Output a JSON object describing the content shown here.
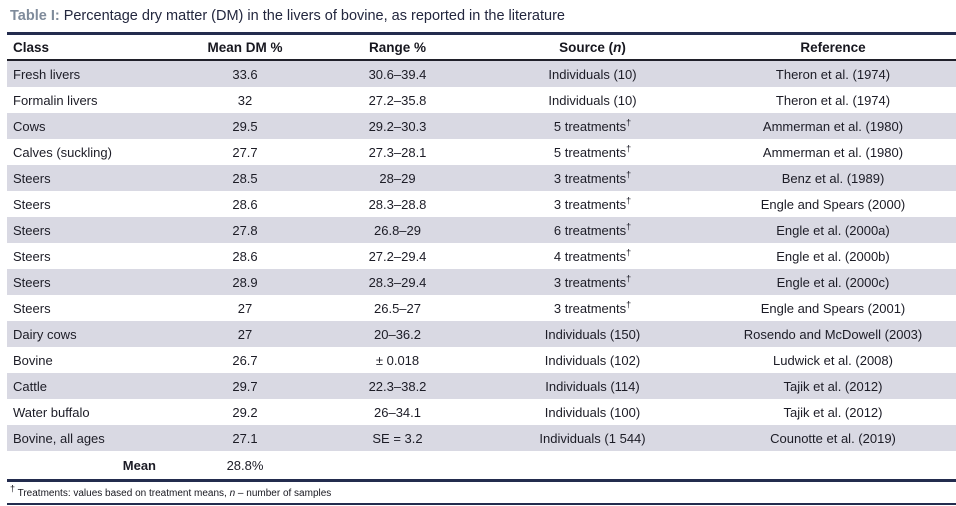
{
  "caption": {
    "label": "Table I:",
    "text": "Percentage dry matter (DM) in the livers of bovine, as reported in the literature"
  },
  "header": {
    "class": "Class",
    "mean": "Mean DM %",
    "range": "Range %",
    "source_pre": "Source (",
    "source_n": "n",
    "source_post": ")",
    "reference": "Reference"
  },
  "rows": [
    {
      "class": "Fresh livers",
      "mean": "33.6",
      "range": "30.6–39.4",
      "source": "Individuals (10)",
      "source_sup": "",
      "reference": "Theron et al. (1974)"
    },
    {
      "class": "Formalin livers",
      "mean": "32",
      "range": "27.2–35.8",
      "source": "Individuals (10)",
      "source_sup": "",
      "reference": "Theron et al. (1974)"
    },
    {
      "class": "Cows",
      "mean": "29.5",
      "range": "29.2–30.3",
      "source": "5 treatments",
      "source_sup": "†",
      "reference": "Ammerman et al. (1980)"
    },
    {
      "class": "Calves (suckling)",
      "mean": "27.7",
      "range": "27.3–28.1",
      "source": "5 treatments",
      "source_sup": "†",
      "reference": "Ammerman et al. (1980)"
    },
    {
      "class": "Steers",
      "mean": "28.5",
      "range": "28–29",
      "source": "3 treatments",
      "source_sup": "†",
      "reference": "Benz et al. (1989)"
    },
    {
      "class": "Steers",
      "mean": "28.6",
      "range": "28.3–28.8",
      "source": "3 treatments",
      "source_sup": "†",
      "reference": "Engle and Spears (2000)"
    },
    {
      "class": "Steers",
      "mean": "27.8",
      "range": "26.8–29",
      "source": "6 treatments",
      "source_sup": "†",
      "reference": "Engle et al. (2000a)"
    },
    {
      "class": "Steers",
      "mean": "28.6",
      "range": "27.2–29.4",
      "source": "4 treatments",
      "source_sup": "†",
      "reference": "Engle et al. (2000b)"
    },
    {
      "class": "Steers",
      "mean": "28.9",
      "range": "28.3–29.4",
      "source": "3 treatments",
      "source_sup": "†",
      "reference": "Engle et al. (2000c)"
    },
    {
      "class": "Steers",
      "mean": "27",
      "range": "26.5–27",
      "source": "3 treatments",
      "source_sup": "†",
      "reference": "Engle and Spears (2001)"
    },
    {
      "class": "Dairy cows",
      "mean": "27",
      "range": "20–36.2",
      "source": "Individuals (150)",
      "source_sup": "",
      "reference": "Rosendo and McDowell (2003)"
    },
    {
      "class": "Bovine",
      "mean": "26.7",
      "range": "± 0.018",
      "source": "Individuals (102)",
      "source_sup": "",
      "reference": "Ludwick et al. (2008)"
    },
    {
      "class": "Cattle",
      "mean": "29.7",
      "range": "22.3–38.2",
      "source": "Individuals (114)",
      "source_sup": "",
      "reference": "Tajik et al. (2012)"
    },
    {
      "class": "Water buffalo",
      "mean": "29.2",
      "range": "26–34.1",
      "source": "Individuals (100)",
      "source_sup": "",
      "reference": "Tajik et al. (2012)"
    },
    {
      "class": "Bovine, all ages",
      "mean": "27.1",
      "range": "SE = 3.2",
      "source": "Individuals (1 544)",
      "source_sup": "",
      "reference": "Counotte et al. (2019)"
    }
  ],
  "mean_row": {
    "label": "Mean",
    "value": "28.8%"
  },
  "footnote": {
    "sup": "†",
    "text1": " Treatments: values based on treatment means, ",
    "italic": "n",
    "text2": " – number of samples"
  },
  "colors": {
    "rule_navy": "#232c4e",
    "header_rule": "#20202a",
    "row_shade": "#d9d9e3",
    "caption_label": "#7f8b9b",
    "text": "#1c1c26"
  }
}
